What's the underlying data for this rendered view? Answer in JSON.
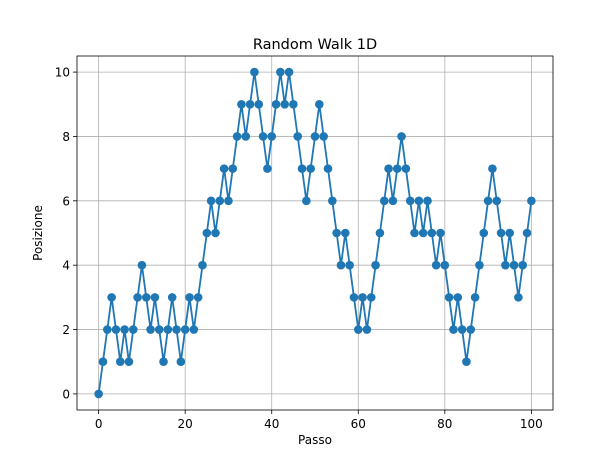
{
  "chart_data": {
    "type": "line",
    "title": "Random Walk 1D",
    "xlabel": "Passo",
    "ylabel": "Posizione",
    "xlim": [
      -5,
      105
    ],
    "ylim": [
      -0.5,
      10.5
    ],
    "xticks": [
      0,
      20,
      40,
      60,
      80,
      100
    ],
    "yticks": [
      0,
      2,
      4,
      6,
      8,
      10
    ],
    "grid": true,
    "marker": "circle",
    "series": [
      {
        "color": "#1f77b4",
        "x": [
          0,
          1,
          2,
          3,
          4,
          5,
          6,
          7,
          8,
          9,
          10,
          11,
          12,
          13,
          14,
          15,
          16,
          17,
          18,
          19,
          20,
          21,
          22,
          23,
          24,
          25,
          26,
          27,
          28,
          29,
          30,
          31,
          32,
          33,
          34,
          35,
          36,
          37,
          38,
          39,
          40,
          41,
          42,
          43,
          44,
          45,
          46,
          47,
          48,
          49,
          50,
          51,
          52,
          53,
          54,
          55,
          56,
          57,
          58,
          59,
          60,
          61,
          62,
          63,
          64,
          65,
          66,
          67,
          68,
          69,
          70,
          71,
          72,
          73,
          74,
          75,
          76,
          77,
          78,
          79,
          80,
          81,
          82,
          83,
          84,
          85,
          86,
          87,
          88,
          89,
          90,
          91,
          92,
          93,
          94,
          95,
          96,
          97,
          98,
          99,
          100
        ],
        "y": [
          0,
          1,
          2,
          3,
          2,
          1,
          2,
          1,
          2,
          3,
          4,
          3,
          2,
          3,
          2,
          1,
          2,
          3,
          2,
          1,
          2,
          3,
          2,
          3,
          4,
          5,
          6,
          5,
          6,
          7,
          6,
          7,
          8,
          9,
          8,
          9,
          10,
          9,
          8,
          7,
          8,
          9,
          10,
          9,
          10,
          9,
          8,
          7,
          6,
          7,
          8,
          9,
          8,
          7,
          6,
          5,
          4,
          5,
          4,
          3,
          2,
          3,
          2,
          3,
          4,
          5,
          6,
          7,
          6,
          7,
          8,
          7,
          6,
          5,
          6,
          5,
          6,
          5,
          4,
          5,
          4,
          3,
          2,
          3,
          2,
          1,
          2,
          3,
          4,
          5,
          6,
          7,
          6,
          5,
          4,
          5,
          4,
          3,
          4,
          5,
          6
        ]
      }
    ]
  }
}
